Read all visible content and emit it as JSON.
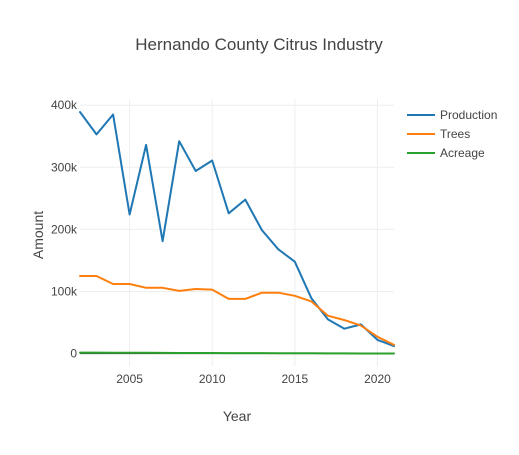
{
  "chart_data": {
    "type": "line",
    "title": "Hernando County Citrus Industry",
    "xlabel": "Year",
    "ylabel": "Amount",
    "xlim": [
      2002,
      2021
    ],
    "ylim": [
      -20000,
      410000
    ],
    "x_ticks": [
      2005,
      2010,
      2015,
      2020
    ],
    "y_ticks": [
      0,
      100000,
      200000,
      300000,
      400000
    ],
    "y_tick_labels": [
      "0",
      "100k",
      "200k",
      "300k",
      "400k"
    ],
    "grid": true,
    "legend_position": "top-right",
    "x": [
      2002,
      2003,
      2004,
      2005,
      2006,
      2007,
      2008,
      2009,
      2010,
      2011,
      2012,
      2013,
      2014,
      2015,
      2016,
      2017,
      2018,
      2019,
      2020,
      2021
    ],
    "series": [
      {
        "name": "Production",
        "color": "#1f77b4",
        "values": [
          389000,
          353000,
          385000,
          224000,
          336000,
          181000,
          342000,
          294000,
          311000,
          226000,
          248000,
          199000,
          168000,
          148000,
          89000,
          55000,
          40000,
          47000,
          22000,
          12000
        ]
      },
      {
        "name": "Trees",
        "color": "#ff7f0e",
        "values": [
          125000,
          125000,
          112000,
          112000,
          106000,
          106000,
          101000,
          104000,
          103000,
          88000,
          88000,
          98000,
          98000,
          93000,
          84000,
          61000,
          54000,
          45000,
          27000,
          14000
        ]
      },
      {
        "name": "Acreage",
        "color": "#2ca02c",
        "values": [
          1600,
          1500,
          1400,
          1300,
          1200,
          1100,
          1000,
          950,
          900,
          850,
          800,
          700,
          600,
          500,
          400,
          300,
          250,
          200,
          150,
          100
        ]
      }
    ]
  }
}
